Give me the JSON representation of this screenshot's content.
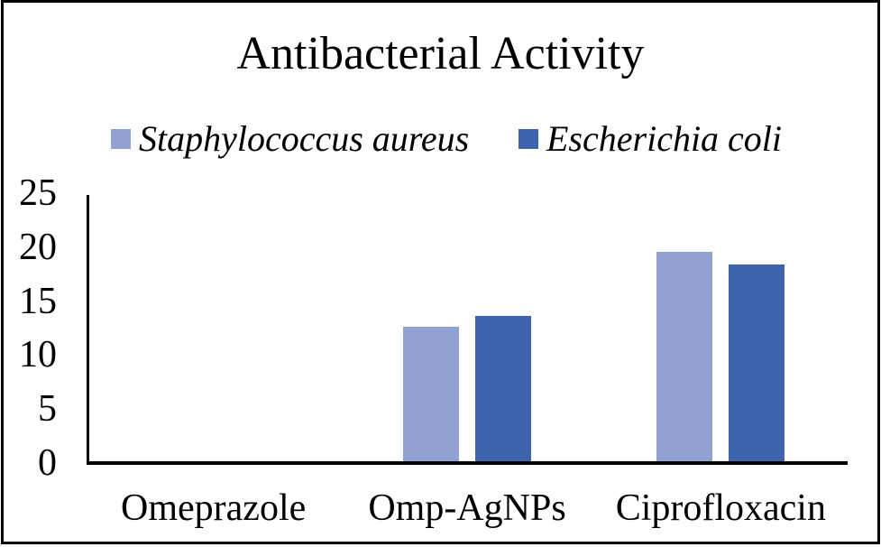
{
  "title": "Antibacterial Activity",
  "chart_data": {
    "type": "bar",
    "title": "Antibacterial Activity",
    "categories": [
      "Omeprazole",
      "Omp-AgNPs",
      "Ciprofloxacin"
    ],
    "series": [
      {
        "name": "Staphylococcus aureus",
        "color": "#91A1D3",
        "values": [
          0,
          12.5,
          19.4
        ]
      },
      {
        "name": "Escherichia coli",
        "color": "#3E64AE",
        "values": [
          0,
          13.5,
          18.2
        ]
      }
    ],
    "ylabel": "",
    "xlabel": "",
    "ylim": [
      0,
      25
    ],
    "yticks": [
      0,
      5,
      10,
      15,
      20,
      25
    ],
    "grid": false,
    "legend_position": "top"
  },
  "colors": {
    "series1": "#91A1D3",
    "series2": "#3E64AE",
    "axis": "#000000",
    "border": "#000000",
    "background": "#FFFFFF"
  }
}
